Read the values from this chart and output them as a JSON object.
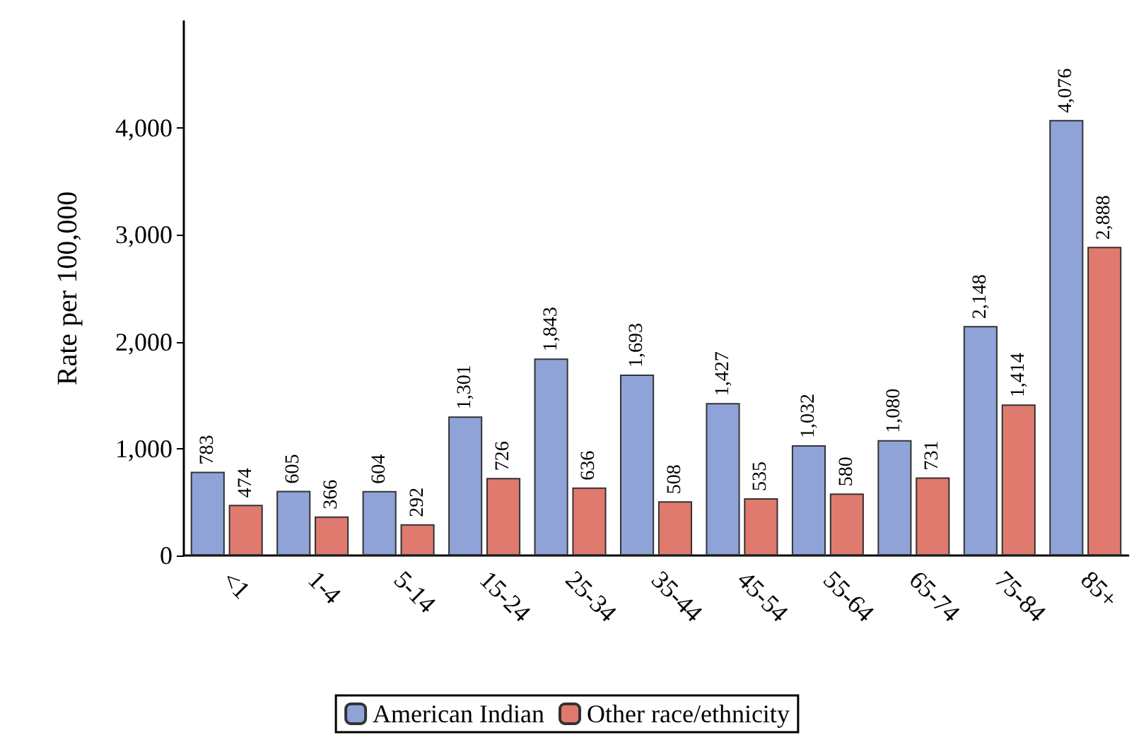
{
  "chart_data": {
    "type": "bar",
    "ylabel": "Rate per 100,000",
    "categories": [
      "<1",
      "1-4",
      "5-14",
      "15-24",
      "25-34",
      "35-44",
      "45-54",
      "55-64",
      "65-74",
      "75-84",
      "85+"
    ],
    "series": [
      {
        "name": "American Indian",
        "color": "#8fa3d9",
        "values": [
          783,
          605,
          604,
          1301,
          1843,
          1693,
          1427,
          1032,
          1080,
          2148,
          4076
        ],
        "value_labels": [
          "783",
          "605",
          "604",
          "1,301",
          "1,843",
          "1,693",
          "1,427",
          "1,032",
          "1,080",
          "2,148",
          "4,076"
        ]
      },
      {
        "name": "Other race/ethnicity",
        "color": "#e07a6e",
        "values": [
          474,
          366,
          292,
          726,
          636,
          508,
          535,
          580,
          731,
          1414,
          2888
        ],
        "value_labels": [
          "474",
          "366",
          "292",
          "726",
          "636",
          "508",
          "535",
          "580",
          "731",
          "1,414",
          "2,888"
        ]
      }
    ],
    "ylim": [
      0,
      5000
    ],
    "yticks": [
      0,
      {
        "value": 1000,
        "label": "1,000"
      },
      {
        "value": 2000,
        "label": "2,000"
      },
      {
        "value": 3000,
        "label": "3,000"
      },
      {
        "value": 4000,
        "label": "4,000"
      }
    ],
    "grid": false,
    "legend": "bottom"
  }
}
